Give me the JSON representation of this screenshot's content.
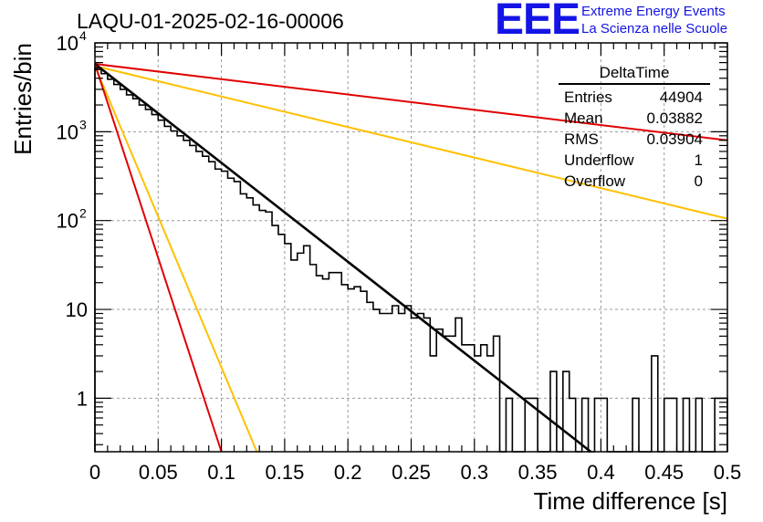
{
  "title": "LAQU-01-2025-02-16-00006",
  "logo": {
    "mark": "EEE",
    "line1": "Extreme Energy Events",
    "line2": "La Scienza nelle Scuole"
  },
  "stats_box": {
    "name": "DeltaTime",
    "rows": [
      {
        "label": "Entries",
        "value": "44904"
      },
      {
        "label": "Mean",
        "value": "0.03882"
      },
      {
        "label": "RMS",
        "value": "0.03904"
      },
      {
        "label": "Underflow",
        "value": "1"
      },
      {
        "label": "Overflow",
        "value": "0"
      }
    ]
  },
  "colors": {
    "histogram": "#000000",
    "fit": "#000000",
    "red_curve": "#e00000",
    "yellow_curve": "#ffc000",
    "grid": "#999999"
  },
  "chart_data": {
    "type": "line",
    "xlabel": "Time difference [s]",
    "ylabel": "Entries/bin",
    "xlim": [
      0,
      0.5
    ],
    "ylim": [
      0.25,
      10000
    ],
    "yscale": "log",
    "grid": true,
    "x_ticks": [
      "0",
      "0.05",
      "0.1",
      "0.15",
      "0.2",
      "0.25",
      "0.3",
      "0.35",
      "0.4",
      "0.45",
      "0.5"
    ],
    "y_ticks": [
      {
        "value": 1,
        "label": "1"
      },
      {
        "value": 10,
        "label": "10"
      },
      {
        "value": 100,
        "label": "10",
        "exp": "2"
      },
      {
        "value": 1000,
        "label": "10",
        "exp": "3"
      },
      {
        "value": 10000,
        "label": "10",
        "exp": "4"
      }
    ],
    "histogram": {
      "bin_width": 0.005,
      "counts": [
        5200,
        4500,
        3900,
        3400,
        3000,
        2600,
        2350,
        2000,
        1780,
        1560,
        1350,
        1150,
        1020,
        900,
        800,
        700,
        600,
        530,
        460,
        380,
        360,
        300,
        275,
        200,
        180,
        150,
        130,
        125,
        88,
        70,
        55,
        36,
        43,
        52,
        32,
        24,
        22,
        26,
        26,
        19,
        17,
        18,
        16,
        12,
        10,
        9,
        9,
        11,
        9,
        11,
        8,
        9,
        8,
        3,
        6,
        5,
        5,
        8,
        4,
        4,
        3,
        4,
        3,
        5,
        0.25,
        1,
        0,
        0,
        1,
        1,
        0,
        0,
        2,
        0.25,
        2,
        1,
        0,
        1,
        0,
        1,
        1,
        0,
        0,
        0,
        0,
        1,
        0,
        0,
        3,
        0,
        1,
        1,
        0,
        1,
        0,
        1,
        0,
        0,
        1,
        1
      ]
    },
    "curves": [
      {
        "color": "red",
        "points": [
          [
            0,
            5800
          ],
          [
            0.5,
            800
          ]
        ]
      },
      {
        "color": "yellow",
        "points": [
          [
            0,
            5500
          ],
          [
            0.5,
            105
          ]
        ]
      },
      {
        "color": "black",
        "points": [
          [
            0,
            5800
          ],
          [
            0.392,
            0.25
          ]
        ]
      },
      {
        "color": "yellow",
        "points": [
          [
            0,
            5500
          ],
          [
            0.128,
            0.25
          ]
        ]
      },
      {
        "color": "red",
        "points": [
          [
            0,
            5800
          ],
          [
            0.1,
            0.25
          ]
        ]
      }
    ]
  }
}
